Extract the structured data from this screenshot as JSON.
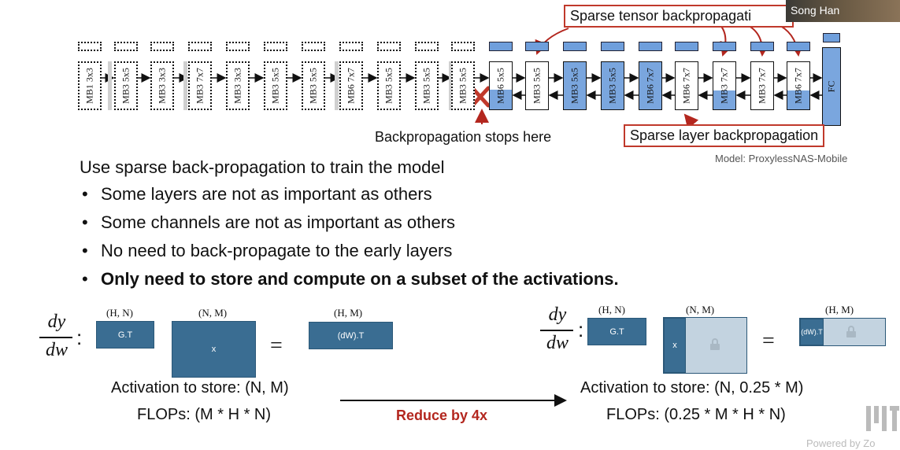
{
  "diagram": {
    "callouts": {
      "sparse_tensor": "Sparse tensor backpropagati",
      "sparse_layer": "Sparse layer backpropagation",
      "stop": "Backpropagation stops here"
    },
    "model_note": "Model: ProxylessNAS-Mobile",
    "frozen_blocks": [
      "MB1 3x3",
      "MB3 5x5",
      "MB3 3x3",
      "MB3 7x7",
      "MB3 3x3",
      "MB3 5x5",
      "MB3 5x5",
      "MB6 7x7",
      "MB3 5x5",
      "MB3 5x5",
      "MB3 5x5"
    ],
    "trained_blocks": [
      "MB6 5x5",
      "MB3 5x5",
      "MB3 5x5",
      "MB3 5x5",
      "MB6 7x7",
      "MB6 7x7",
      "MB3 7x7",
      "MB3 7x7",
      "MB6 7x7"
    ],
    "fc_label": "FC",
    "colors": {
      "trained": "#7aa6de",
      "callout_border": "#c0392b",
      "matrix": "#3a6d92",
      "matrix_light": "#c3d3e0",
      "reduce": "#b3261e"
    }
  },
  "text": {
    "heading": "Use sparse back-propagation to train the model",
    "bullets": [
      "Some layers are not as important as others",
      "Some channels are not as important as others",
      "No need to back-propagate to the early layers",
      "Only need to store and compute on a subset of the activations."
    ]
  },
  "equation_left": {
    "frac_num": "dy",
    "frac_den": "dw",
    "gt_label": "G.T",
    "gt_dim": "(H, N)",
    "x_label": "x",
    "x_dim": "(N, M)",
    "out_label": "(dW).T",
    "out_dim": "(H, M)",
    "activation": "Activation to store: (N, M)",
    "flops": "FLOPs: (M * H * N)"
  },
  "equation_right": {
    "frac_num": "dy",
    "frac_den": "dw",
    "gt_label": "G.T",
    "gt_dim": "(H, N)",
    "x_label": "x",
    "x_dim": "(N, M)",
    "out_label": "(dW).T",
    "out_dim": "(H, M)",
    "activation": "Activation to store: (N, 0.25 * M)",
    "flops": "FLOPs: (0.25 * M * H * N)"
  },
  "reduce_label": "Reduce by 4x",
  "speaker": {
    "name": "Song Han"
  },
  "footer": "Powered by Zo"
}
